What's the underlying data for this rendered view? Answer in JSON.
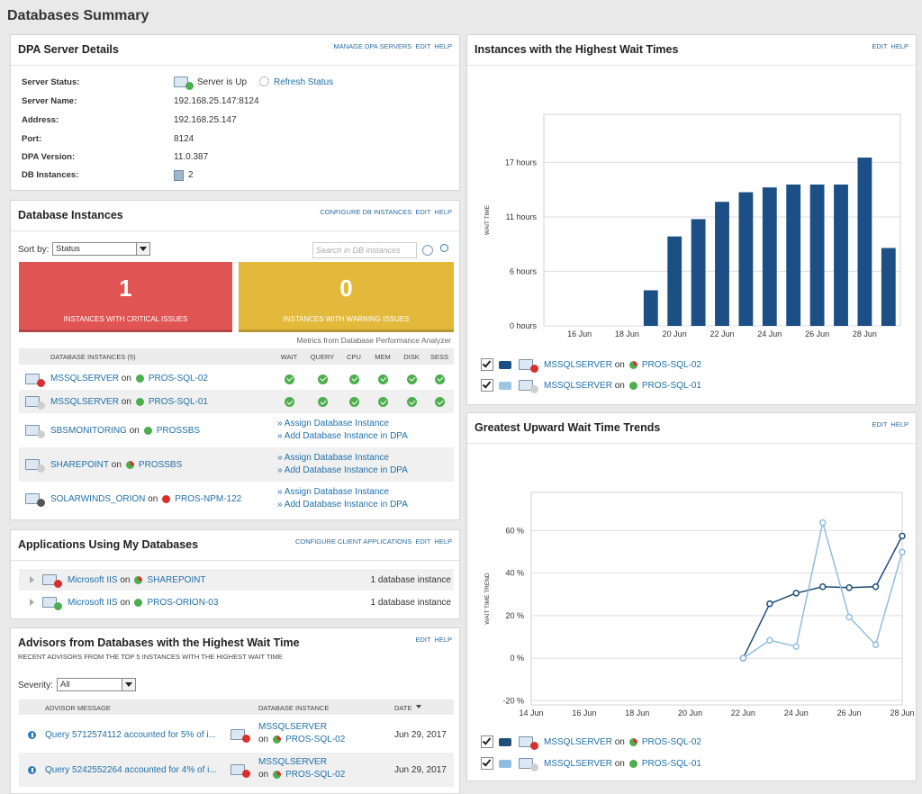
{
  "header": {
    "title": "Databases Summary"
  },
  "connector": "on",
  "server_details": {
    "title": "DPA Server Details",
    "links": [
      "MANAGE DPA SERVERS",
      "EDIT",
      "HELP"
    ],
    "rows": [
      {
        "label": "Server Status:",
        "value": "Server is Up"
      },
      {
        "label": "Server Name:",
        "value": "192.168.25.147:8124"
      },
      {
        "label": "Address:",
        "value": "192.168.25.147"
      },
      {
        "label": "Port:",
        "value": "8124"
      },
      {
        "label": "DPA Version:",
        "value": "11.0.387"
      },
      {
        "label": "DB Instances:",
        "value": "2"
      }
    ],
    "refresh": "Refresh Status"
  },
  "db_instances": {
    "title": "Database Instances",
    "links": [
      "CONFIGURE DB INSTANCES",
      "EDIT",
      "HELP"
    ],
    "sort_label": "Sort by:",
    "sort_value": "Status",
    "search_placeholder": "Search in DB instances",
    "critical": {
      "count": 1,
      "label": "INSTANCES WITH CRITICAL ISSUES"
    },
    "warning": {
      "count": 0,
      "label": "INSTANCES WITH WARNING ISSUES"
    },
    "metrics_note": "Metrics from Database Performance Analyzer",
    "columns": [
      "DATABASE INSTANCES (5)",
      "WAIT",
      "QUERY",
      "CPU",
      "MEM",
      "DISK",
      "SESS"
    ],
    "rows": [
      {
        "name": "MSSQLSERVER",
        "host": "PROS-SQL-02"
      },
      {
        "name": "MSSQLSERVER",
        "host": "PROS-SQL-01"
      },
      {
        "name": "SBSMONITORING",
        "host": "PROSSBS",
        "actions": [
          "» Assign Database Instance",
          "» Add Database Instance in DPA"
        ]
      },
      {
        "name": "SHAREPOINT",
        "host": "PROSSBS",
        "actions": [
          "» Assign Database Instance",
          "» Add Database Instance in DPA"
        ]
      },
      {
        "name": "SOLARWINDS_ORION",
        "host": "PROS-NPM-122",
        "actions": [
          "» Assign Database Instance",
          "» Add Database Instance in DPA"
        ]
      }
    ]
  },
  "applications": {
    "title": "Applications Using My Databases",
    "links": [
      "CONFIGURE CLIENT APPLICATIONS",
      "EDIT",
      "HELP"
    ],
    "rows": [
      {
        "name": "Microsoft IIS",
        "host": "SHAREPOINT",
        "count": "1 database instance"
      },
      {
        "name": "Microsoft IIS",
        "host": "PROS-ORION-03",
        "count": "1 database instance"
      }
    ]
  },
  "advisors": {
    "title": "Advisors from Databases with the Highest Wait Time",
    "subtitle": "RECENT ADVISORS FROM THE TOP 5 INSTANCES WITH THE HIGHEST WAIT TIME",
    "links": [
      "EDIT",
      "HELP"
    ],
    "severity_label": "Severity:",
    "severity_value": "All",
    "columns": [
      "ADVISOR MESSAGE",
      "DATABASE INSTANCE",
      "DATE"
    ],
    "rows": [
      {
        "message": "Query 5712574112 accounted for 5% of i...",
        "instance": "MSSQLSERVER",
        "host": "PROS-SQL-02",
        "date": "Jun 29, 2017"
      },
      {
        "message": "Query 5242552264 accounted for 4% of i...",
        "instance": "MSSQLSERVER",
        "host": "PROS-SQL-02",
        "date": "Jun 29, 2017"
      }
    ]
  },
  "chart_links": [
    "EDIT",
    "HELP"
  ],
  "chart_data": [
    {
      "type": "bar",
      "title": "Instances with the Highest Wait Times",
      "y_label": "WAIT TIME",
      "categories": [
        null,
        "16 Jun",
        null,
        "18 Jun",
        null,
        "20 Jun",
        null,
        "22 Jun",
        null,
        "24 Jun",
        null,
        "26 Jun",
        null,
        "28 Jun",
        null
      ],
      "series": [
        {
          "name": "MSSQLSERVER",
          "host": "PROS-SQL-02",
          "color": "#1b4f86",
          "values": [
            null,
            null,
            null,
            null,
            3.7,
            9.3,
            11.1,
            12.9,
            13.9,
            14.4,
            14.7,
            14.7,
            14.7,
            17.5,
            8.1
          ]
        },
        {
          "name": "MSSQLSERVER",
          "host": "PROS-SQL-01",
          "color": "#9dc6e6",
          "values": [
            null,
            null,
            null,
            null,
            null,
            null,
            null,
            null,
            null,
            null,
            null,
            null,
            null,
            null,
            null
          ]
        }
      ],
      "ylim": [
        0,
        22
      ],
      "yticks": [
        {
          "value": 0,
          "label": "0 hours"
        },
        {
          "value": 5.67,
          "label": "6 hours"
        },
        {
          "value": 11.33,
          "label": "11 hours"
        },
        {
          "value": 17,
          "label": "17 hours"
        }
      ],
      "grid": true
    },
    {
      "type": "line",
      "title": "Greatest Upward Wait Time Trends",
      "y_label": "WAIT TIME TREND",
      "categories": [
        "14 Jun",
        null,
        "16 Jun",
        null,
        "18 Jun",
        null,
        "20 Jun",
        null,
        "22 Jun",
        null,
        "24 Jun",
        null,
        "26 Jun",
        null,
        "28 Jun"
      ],
      "series": [
        {
          "name": "MSSQLSERVER",
          "host": "PROS-SQL-02",
          "color": "#1f4e79",
          "values": [
            null,
            null,
            null,
            null,
            null,
            null,
            null,
            null,
            0,
            25.6,
            30.6,
            33.6,
            33.2,
            33.6,
            57.5
          ]
        },
        {
          "name": "MSSQLSERVER",
          "host": "PROS-SQL-01",
          "color": "#8fbde0",
          "values": [
            null,
            null,
            null,
            null,
            null,
            null,
            null,
            null,
            0,
            8.4,
            5.5,
            63.8,
            19.3,
            6.3,
            49.9
          ]
        }
      ],
      "ylim": [
        -22,
        78
      ],
      "yticks": [
        {
          "value": -20,
          "label": "-20 %"
        },
        {
          "value": 0,
          "label": "0 %"
        },
        {
          "value": 20,
          "label": "20 %"
        },
        {
          "value": 40,
          "label": "40 %"
        },
        {
          "value": 60,
          "label": "60 %"
        }
      ],
      "grid": true
    }
  ]
}
